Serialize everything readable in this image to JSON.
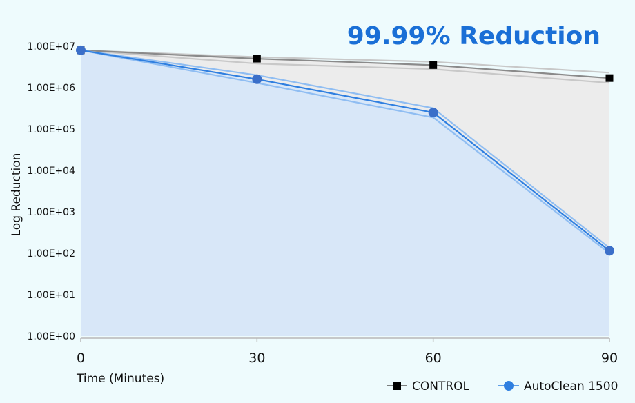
{
  "chart_data": {
    "type": "line",
    "title": "99.99% Reduction",
    "xlabel": "Time (Minutes)",
    "ylabel": "Log Reduction",
    "x": [
      0,
      30,
      60,
      90
    ],
    "x_tick_labels": [
      "0",
      "30",
      "60",
      "90"
    ],
    "y_scale": "log",
    "ylim": [
      1,
      10000000
    ],
    "y_tick_labels": [
      "1.00E+00",
      "1.00E+01",
      "1.00E+02",
      "1.00E+03",
      "1.00E+04",
      "1.00E+05",
      "1.00E+06",
      "1.00E+07"
    ],
    "y_tick_values": [
      1,
      10,
      100,
      1000,
      10000,
      100000,
      1000000,
      10000000
    ],
    "legend_position": "bottom-right",
    "series": [
      {
        "name": "CONTROL",
        "marker": "square",
        "color": "#000000",
        "line_color": "#8a8a8a",
        "band_color": "#c8c8c8",
        "fill_color": "#ececec",
        "values": [
          8000000,
          5000000,
          3500000,
          1700000
        ],
        "band_upper": [
          8000000,
          5500000,
          4200000,
          2300000
        ],
        "band_lower": [
          8000000,
          3800000,
          2800000,
          1300000
        ]
      },
      {
        "name": "AutoClean 1500",
        "marker": "circle",
        "color": "#3b6fc9",
        "line_color": "#2f7fe0",
        "band_color": "#8fbdf2",
        "fill_color": "#d8e7f8",
        "values": [
          8000000,
          1600000,
          250000,
          115
        ],
        "band_upper": [
          8000000,
          2000000,
          320000,
          135
        ],
        "band_lower": [
          8000000,
          1300000,
          190000,
          100
        ]
      }
    ]
  }
}
